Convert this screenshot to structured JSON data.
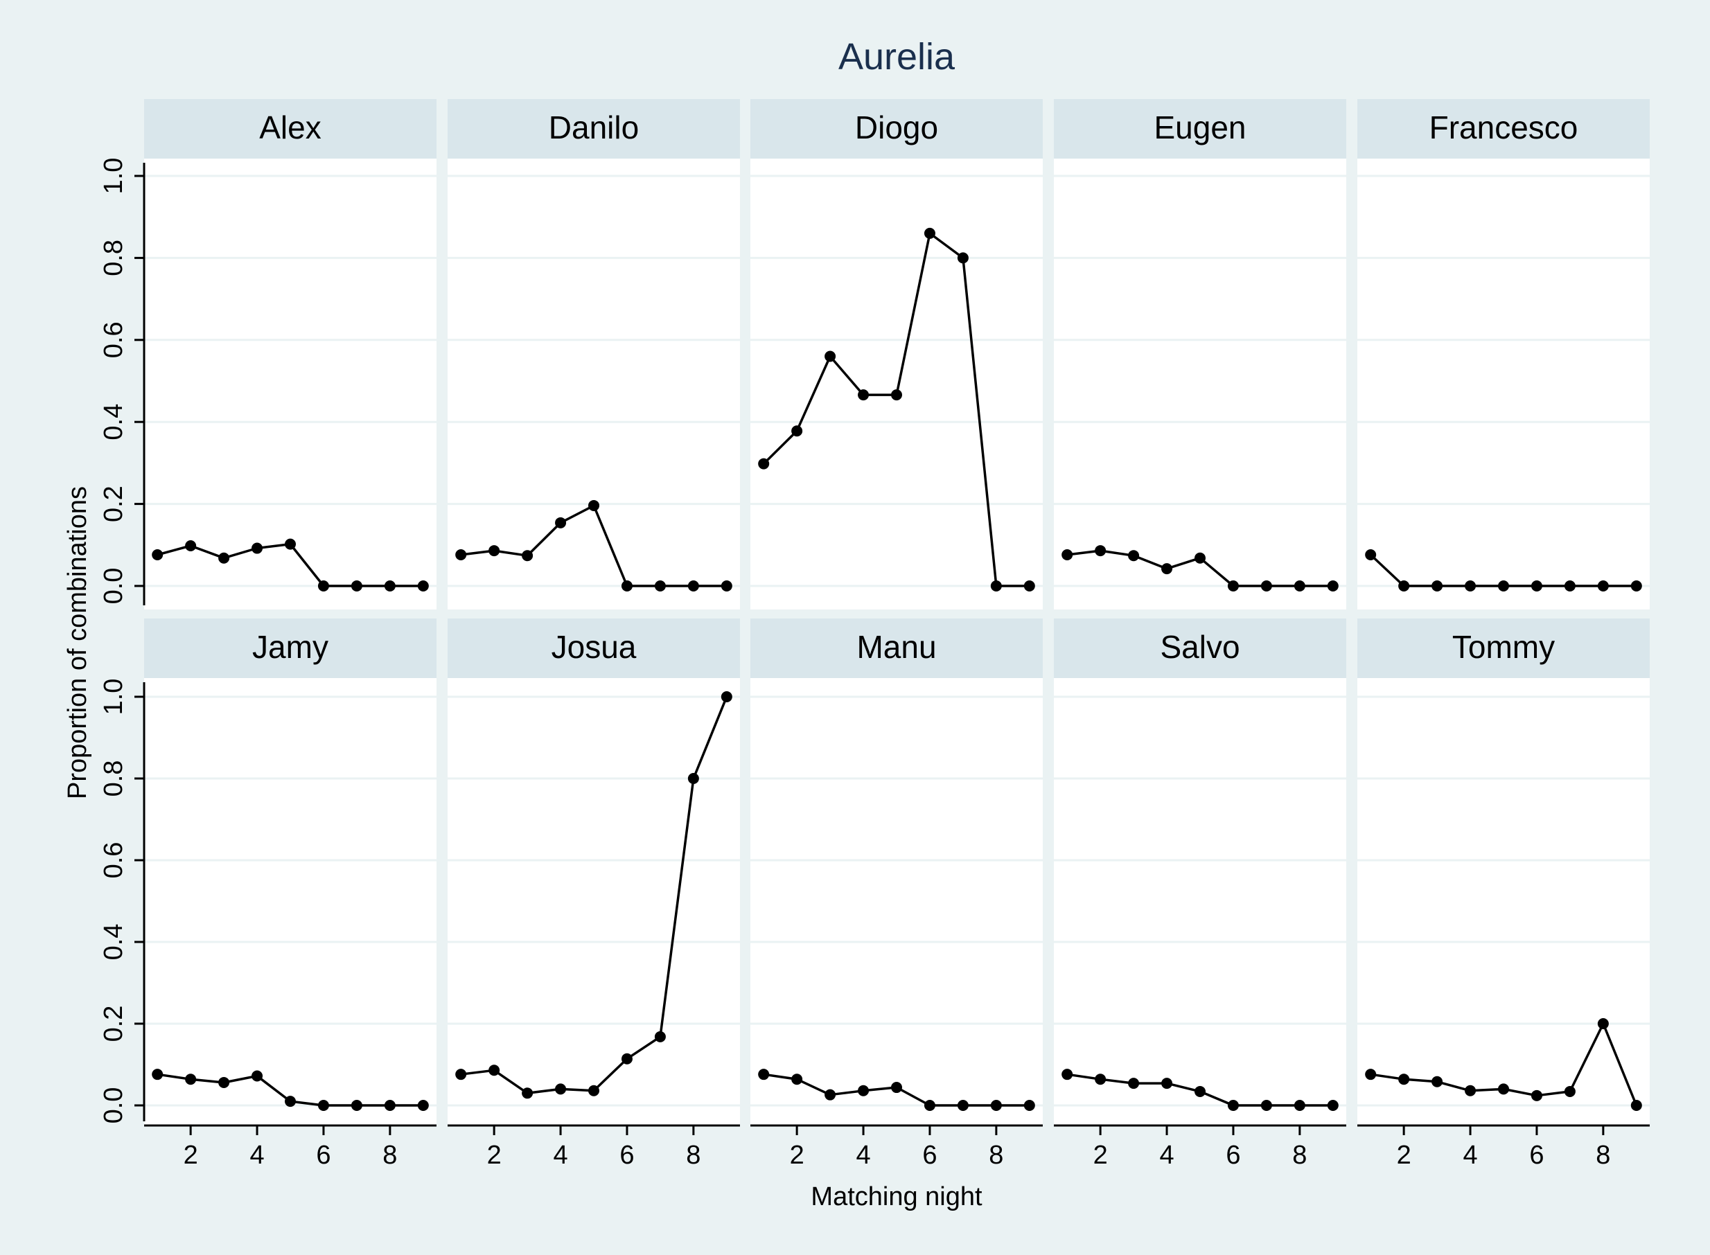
{
  "title": "Aurelia",
  "xlabel": "Matching night",
  "ylabel": "Proportion of combinations",
  "colors": {
    "background": "#eaf2f3",
    "panel": "#ffffff",
    "strip": "#d9e6eb",
    "grid": "#eaf2f3",
    "line": "#000000",
    "title": "#1a2f4d"
  },
  "chart_data": {
    "type": "line",
    "layout": "small-multiples 2x5",
    "x": [
      1,
      2,
      3,
      4,
      5,
      6,
      7,
      8,
      9
    ],
    "xticks": [
      2,
      4,
      6,
      8
    ],
    "xlim": [
      0.6,
      9.4
    ],
    "ylim": [
      0,
      1
    ],
    "yticks": [
      0.0,
      0.2,
      0.4,
      0.6,
      0.8,
      1.0
    ],
    "ytick_labels": [
      "0.0",
      "0.2",
      "0.4",
      "0.6",
      "0.8",
      "1.0"
    ],
    "grid": true,
    "legend": "none",
    "panels": [
      {
        "name": "Alex",
        "values": [
          0.076,
          0.098,
          0.068,
          0.092,
          0.102,
          0.0,
          0.0,
          0.0,
          0.0
        ]
      },
      {
        "name": "Danilo",
        "values": [
          0.076,
          0.086,
          0.074,
          0.154,
          0.196,
          0.0,
          0.0,
          0.0,
          0.0
        ]
      },
      {
        "name": "Diogo",
        "values": [
          0.298,
          0.378,
          0.56,
          0.466,
          0.466,
          0.86,
          0.8,
          0.0,
          0.0
        ]
      },
      {
        "name": "Eugen",
        "values": [
          0.076,
          0.086,
          0.074,
          0.042,
          0.068,
          0.0,
          0.0,
          0.0,
          0.0
        ]
      },
      {
        "name": "Francesco",
        "values": [
          0.076,
          0.0,
          0.0,
          0.0,
          0.0,
          0.0,
          0.0,
          0.0,
          0.0
        ]
      },
      {
        "name": "Jamy",
        "values": [
          0.076,
          0.064,
          0.056,
          0.072,
          0.01,
          0.0,
          0.0,
          0.0,
          0.0
        ]
      },
      {
        "name": "Josua",
        "values": [
          0.076,
          0.086,
          0.03,
          0.04,
          0.036,
          0.114,
          0.168,
          0.8,
          1.0
        ]
      },
      {
        "name": "Manu",
        "values": [
          0.076,
          0.064,
          0.026,
          0.036,
          0.044,
          0.0,
          0.0,
          0.0,
          0.0
        ]
      },
      {
        "name": "Salvo",
        "values": [
          0.076,
          0.064,
          0.054,
          0.054,
          0.034,
          0.0,
          0.0,
          0.0,
          0.0
        ]
      },
      {
        "name": "Tommy",
        "values": [
          0.076,
          0.064,
          0.058,
          0.036,
          0.04,
          0.024,
          0.034,
          0.2,
          0.0
        ]
      }
    ]
  }
}
